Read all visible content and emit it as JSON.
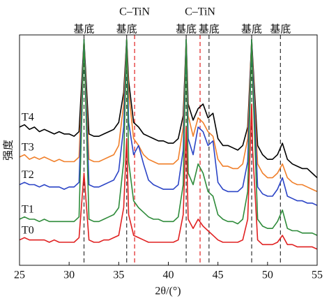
{
  "chart_data": {
    "type": "line",
    "xlabel": "2θ/(°)",
    "ylabel": "强度",
    "x": [
      25,
      25.5,
      26,
      26.5,
      27,
      27.5,
      28,
      28.5,
      29,
      29.5,
      30,
      30.5,
      31,
      31.5,
      32,
      32.5,
      33,
      33.5,
      34,
      34.5,
      35,
      35.5,
      35.8,
      36,
      36.5,
      37,
      37.5,
      38,
      38.5,
      39,
      39.5,
      40,
      40.5,
      41,
      41.5,
      41.8,
      42,
      42.5,
      43,
      43.5,
      44,
      44.5,
      45,
      45.5,
      46,
      46.5,
      47,
      47.5,
      48,
      48.4,
      48.5,
      49,
      49.5,
      50,
      50.5,
      51,
      51.5,
      52,
      52.5,
      53,
      53.5,
      54,
      54.5,
      55
    ],
    "series": [
      {
        "name": "T4",
        "color": "#000000",
        "values": [
          60,
          61,
          59,
          60,
          58,
          59,
          58,
          57,
          58,
          57,
          57,
          56,
          58,
          98,
          57,
          56,
          56,
          57,
          58,
          59,
          62,
          75,
          98,
          80,
          62,
          60,
          57,
          56,
          55,
          54,
          54,
          53,
          53,
          55,
          65,
          98,
          70,
          63,
          68,
          70,
          64,
          66,
          55,
          52,
          52,
          51,
          50,
          52,
          60,
          98,
          90,
          52,
          48,
          46,
          46,
          48,
          53,
          46,
          44,
          43,
          42,
          42,
          40,
          38
        ]
      },
      {
        "name": "T3",
        "color": "#f07f2a",
        "values": [
          47,
          48,
          46,
          47,
          46,
          47,
          46,
          45,
          46,
          45,
          45,
          45,
          47,
          98,
          46,
          45,
          45,
          46,
          47,
          48,
          52,
          70,
          98,
          75,
          55,
          52,
          48,
          46,
          45,
          44,
          44,
          44,
          44,
          46,
          60,
          98,
          65,
          56,
          64,
          62,
          58,
          56,
          46,
          43,
          43,
          42,
          42,
          44,
          55,
          98,
          88,
          44,
          40,
          38,
          38,
          40,
          44,
          38,
          36,
          35,
          35,
          34,
          33,
          32
        ]
      },
      {
        "name": "T2",
        "color": "#2b44c6",
        "values": [
          35,
          36,
          35,
          35,
          34,
          35,
          34,
          34,
          34,
          33,
          34,
          34,
          36,
          98,
          35,
          34,
          34,
          35,
          36,
          37,
          41,
          60,
          98,
          62,
          48,
          52,
          44,
          37,
          35,
          34,
          33,
          33,
          33,
          35,
          50,
          98,
          55,
          48,
          60,
          58,
          52,
          54,
          36,
          33,
          32,
          32,
          32,
          34,
          45,
          98,
          85,
          34,
          31,
          30,
          30,
          33,
          38,
          30,
          29,
          28,
          28,
          27,
          27,
          26
        ]
      },
      {
        "name": "T1",
        "color": "#2e8b3a",
        "values": [
          20,
          21,
          20,
          20,
          19,
          20,
          19,
          19,
          19,
          19,
          19,
          19,
          21,
          98,
          20,
          19,
          19,
          20,
          21,
          22,
          25,
          45,
          98,
          45,
          28,
          25,
          23,
          21,
          20,
          20,
          19,
          19,
          19,
          21,
          35,
          98,
          40,
          35,
          44,
          40,
          32,
          30,
          22,
          20,
          19,
          19,
          18,
          20,
          32,
          98,
          80,
          20,
          17,
          16,
          16,
          19,
          24,
          16,
          15,
          15,
          14,
          14,
          14,
          13
        ]
      },
      {
        "name": "T0",
        "color": "#e02020",
        "values": [
          11,
          12,
          11,
          11,
          11,
          11,
          10,
          11,
          10,
          10,
          10,
          10,
          12,
          40,
          11,
          10,
          10,
          11,
          11,
          12,
          13,
          25,
          55,
          22,
          13,
          12,
          11,
          10,
          10,
          10,
          10,
          10,
          10,
          11,
          22,
          60,
          20,
          16,
          20,
          17,
          15,
          13,
          11,
          10,
          10,
          10,
          10,
          11,
          20,
          70,
          50,
          11,
          9,
          9,
          9,
          10,
          13,
          9,
          9,
          8,
          8,
          8,
          8,
          7
        ]
      }
    ],
    "reference_lines": [
      {
        "x": 31.5,
        "label": "基底",
        "color": "#333333"
      },
      {
        "x": 35.8,
        "label": "基底",
        "color": "#333333"
      },
      {
        "x": 36.6,
        "label": "C–TiN",
        "color": "#e02020"
      },
      {
        "x": 41.8,
        "label": "基底",
        "color": "#333333"
      },
      {
        "x": 43.2,
        "label": "C–TiN",
        "color": "#e02020"
      },
      {
        "x": 44.1,
        "label": "基底",
        "color": "#333333"
      },
      {
        "x": 48.4,
        "label": "基底",
        "color": "#333333"
      },
      {
        "x": 51.3,
        "label": "基底",
        "color": "#333333"
      }
    ],
    "xlim": [
      25,
      55
    ],
    "xticks": [
      25,
      30,
      35,
      40,
      45,
      50,
      55
    ],
    "ylim": [
      0,
      100
    ]
  }
}
